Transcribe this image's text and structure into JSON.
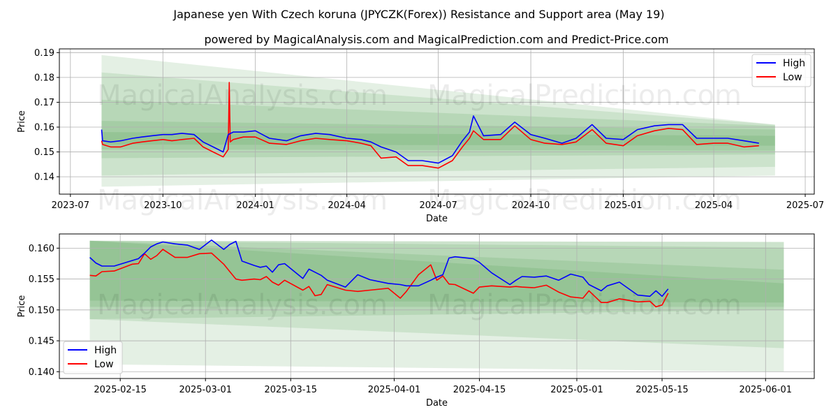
{
  "title": "Japanese yen With Czech koruna (JPYCZK(Forex)) Resistance and Support area (May 19)",
  "subtitle": "powered by MagicalAnalysis.com and MagicalPrediction.com and Predict-Price.com",
  "watermarks": [
    "MagicalAnalysis.com",
    "MagicalPrediction.com"
  ],
  "colors": {
    "high": "#0000ff",
    "low": "#ff0000",
    "band": "#2e8b2e",
    "grid": "#b0b0b0"
  },
  "chart_data": [
    {
      "type": "line",
      "xlabel": "Date",
      "ylabel": "Price",
      "x_tick_labels": [
        "2023-07",
        "2023-10",
        "2024-01",
        "2024-04",
        "2024-07",
        "2024-10",
        "2025-01",
        "2025-04",
        "2025-07"
      ],
      "y_tick_labels": [
        "0.14",
        "0.15",
        "0.16",
        "0.17",
        "0.18",
        "0.19"
      ],
      "xlim": [
        "2023-06-20",
        "2025-07-10"
      ],
      "ylim": [
        0.133,
        0.1915
      ],
      "grid": true,
      "legend": {
        "placement": "top-right",
        "entries": [
          "High",
          "Low"
        ]
      },
      "bands": [
        {
          "x": [
            "2023-08-01",
            "2025-06-01"
          ],
          "upper": [
            0.189,
            0.161
          ],
          "lower": [
            0.136,
            0.1405
          ]
        },
        {
          "x": [
            "2023-08-01",
            "2025-06-01"
          ],
          "upper": [
            0.182,
            0.161
          ],
          "lower": [
            0.1405,
            0.144
          ]
        },
        {
          "x": [
            "2023-08-01",
            "2025-06-01"
          ],
          "upper": [
            0.171,
            0.1605
          ],
          "lower": [
            0.1475,
            0.149
          ]
        },
        {
          "x": [
            "2023-08-01",
            "2025-06-01"
          ],
          "upper": [
            0.1625,
            0.159
          ],
          "lower": [
            0.151,
            0.1505
          ]
        },
        {
          "x": [
            "2023-08-01",
            "2025-06-01"
          ],
          "upper": [
            0.158,
            0.1565
          ],
          "lower": [
            0.153,
            0.1525
          ]
        }
      ],
      "series": [
        {
          "name": "High",
          "x": [
            "2023-08-01",
            "2023-08-02",
            "2023-08-10",
            "2023-08-20",
            "2023-09-01",
            "2023-09-10",
            "2023-09-20",
            "2023-10-01",
            "2023-10-10",
            "2023-10-20",
            "2023-11-01",
            "2023-11-10",
            "2023-11-20",
            "2023-11-30",
            "2023-12-05",
            "2023-12-10",
            "2023-12-20",
            "2024-01-01",
            "2024-01-15",
            "2024-02-01",
            "2024-02-15",
            "2024-03-01",
            "2024-03-15",
            "2024-04-01",
            "2024-04-15",
            "2024-04-25",
            "2024-05-05",
            "2024-05-20",
            "2024-06-01",
            "2024-06-15",
            "2024-07-01",
            "2024-07-15",
            "2024-07-25",
            "2024-08-01",
            "2024-08-05",
            "2024-08-15",
            "2024-09-01",
            "2024-09-15",
            "2024-10-01",
            "2024-10-15",
            "2024-11-01",
            "2024-11-15",
            "2024-12-01",
            "2024-12-15",
            "2025-01-01",
            "2025-01-15",
            "2025-02-01",
            "2025-02-15",
            "2025-03-01",
            "2025-03-15",
            "2025-04-01",
            "2025-04-15",
            "2025-05-01",
            "2025-05-16"
          ],
          "values": [
            0.159,
            0.1545,
            0.154,
            0.1545,
            0.1555,
            0.156,
            0.1565,
            0.157,
            0.157,
            0.1575,
            0.157,
            0.154,
            0.152,
            0.15,
            0.157,
            0.158,
            0.158,
            0.1585,
            0.1555,
            0.1545,
            0.1565,
            0.1575,
            0.157,
            0.1555,
            0.155,
            0.154,
            0.152,
            0.15,
            0.1465,
            0.1465,
            0.1455,
            0.1485,
            0.1545,
            0.158,
            0.1645,
            0.1565,
            0.157,
            0.162,
            0.157,
            0.1555,
            0.1535,
            0.1555,
            0.161,
            0.1555,
            0.155,
            0.159,
            0.1605,
            0.161,
            0.161,
            0.1555,
            0.1555,
            0.1555,
            0.1545,
            0.1535
          ]
        },
        {
          "name": "Low",
          "x": [
            "2023-08-01",
            "2023-08-02",
            "2023-08-10",
            "2023-08-20",
            "2023-09-01",
            "2023-09-10",
            "2023-09-20",
            "2023-10-01",
            "2023-10-10",
            "2023-10-20",
            "2023-11-01",
            "2023-11-10",
            "2023-11-20",
            "2023-11-30",
            "2023-12-05",
            "2023-12-06",
            "2023-12-07",
            "2023-12-10",
            "2023-12-20",
            "2024-01-01",
            "2024-01-15",
            "2024-02-01",
            "2024-02-15",
            "2024-03-01",
            "2024-03-15",
            "2024-04-01",
            "2024-04-15",
            "2024-04-25",
            "2024-05-05",
            "2024-05-20",
            "2024-06-01",
            "2024-06-15",
            "2024-07-01",
            "2024-07-15",
            "2024-07-25",
            "2024-08-01",
            "2024-08-05",
            "2024-08-15",
            "2024-09-01",
            "2024-09-15",
            "2024-10-01",
            "2024-10-15",
            "2024-11-01",
            "2024-11-15",
            "2024-12-01",
            "2024-12-15",
            "2025-01-01",
            "2025-01-15",
            "2025-02-01",
            "2025-02-15",
            "2025-03-01",
            "2025-03-15",
            "2025-04-01",
            "2025-04-15",
            "2025-05-01",
            "2025-05-16"
          ],
          "values": [
            0.1545,
            0.153,
            0.152,
            0.152,
            0.1535,
            0.154,
            0.1545,
            0.155,
            0.1545,
            0.155,
            0.1555,
            0.152,
            0.15,
            0.148,
            0.151,
            0.178,
            0.154,
            0.155,
            0.156,
            0.156,
            0.1535,
            0.153,
            0.1545,
            0.1555,
            0.155,
            0.1545,
            0.1535,
            0.1525,
            0.1475,
            0.148,
            0.1445,
            0.1445,
            0.1435,
            0.1465,
            0.152,
            0.1555,
            0.1585,
            0.155,
            0.155,
            0.1605,
            0.155,
            0.1535,
            0.153,
            0.154,
            0.159,
            0.1535,
            0.1525,
            0.1565,
            0.1585,
            0.1595,
            0.159,
            0.153,
            0.1535,
            0.1535,
            0.152,
            0.1525
          ]
        }
      ]
    },
    {
      "type": "line",
      "xlabel": "Date",
      "ylabel": "Price",
      "x_tick_labels": [
        "2025-02-15",
        "2025-03-01",
        "2025-03-15",
        "2025-04-01",
        "2025-04-15",
        "2025-05-01",
        "2025-05-15",
        "2025-06-01"
      ],
      "y_tick_labels": [
        "0.140",
        "0.145",
        "0.150",
        "0.155",
        "0.160"
      ],
      "xlim": [
        "2025-02-05",
        "2025-06-09"
      ],
      "ylim": [
        0.1389,
        0.1623
      ],
      "grid": true,
      "legend": {
        "placement": "bottom-left",
        "entries": [
          "High",
          "Low"
        ]
      },
      "bands": [
        {
          "x": [
            "2025-02-10",
            "2025-06-04"
          ],
          "upper": [
            0.1612,
            0.161
          ],
          "lower": [
            0.1412,
            0.14
          ]
        },
        {
          "x": [
            "2025-02-10",
            "2025-06-04"
          ],
          "upper": [
            0.1612,
            0.161
          ],
          "lower": [
            0.1485,
            0.1438
          ]
        },
        {
          "x": [
            "2025-02-10",
            "2025-06-04"
          ],
          "upper": [
            0.1612,
            0.1601
          ],
          "lower": [
            0.1485,
            0.15
          ]
        },
        {
          "x": [
            "2025-02-10",
            "2025-06-04"
          ],
          "upper": [
            0.1612,
            0.1565
          ],
          "lower": [
            0.1505,
            0.1505
          ]
        },
        {
          "x": [
            "2025-02-10",
            "2025-06-04"
          ],
          "upper": [
            0.1612,
            0.1543
          ],
          "lower": [
            0.1515,
            0.1512
          ]
        }
      ],
      "series": [
        {
          "name": "High",
          "x": [
            "2025-02-10",
            "2025-02-11",
            "2025-02-12",
            "2025-02-14",
            "2025-02-17",
            "2025-02-18",
            "2025-02-19",
            "2025-02-20",
            "2025-02-21",
            "2025-02-22",
            "2025-02-24",
            "2025-02-26",
            "2025-02-28",
            "2025-03-02",
            "2025-03-04",
            "2025-03-05",
            "2025-03-06",
            "2025-03-07",
            "2025-03-09",
            "2025-03-10",
            "2025-03-11",
            "2025-03-12",
            "2025-03-13",
            "2025-03-14",
            "2025-03-17",
            "2025-03-18",
            "2025-03-19",
            "2025-03-20",
            "2025-03-21",
            "2025-03-24",
            "2025-03-26",
            "2025-03-28",
            "2025-03-31",
            "2025-04-02",
            "2025-04-03",
            "2025-04-05",
            "2025-04-07",
            "2025-04-08",
            "2025-04-09",
            "2025-04-10",
            "2025-04-11",
            "2025-04-14",
            "2025-04-15",
            "2025-04-17",
            "2025-04-20",
            "2025-04-21",
            "2025-04-22",
            "2025-04-24",
            "2025-04-26",
            "2025-04-28",
            "2025-04-30",
            "2025-05-02",
            "2025-05-03",
            "2025-05-05",
            "2025-05-06",
            "2025-05-08",
            "2025-05-11",
            "2025-05-13",
            "2025-05-14",
            "2025-05-15",
            "2025-05-16"
          ],
          "values": [
            0.1585,
            0.1576,
            0.1571,
            0.1571,
            0.158,
            0.1583,
            0.1592,
            0.1602,
            0.1607,
            0.161,
            0.1607,
            0.1605,
            0.1598,
            0.1613,
            0.1598,
            0.1606,
            0.1611,
            0.1579,
            0.1572,
            0.1569,
            0.1571,
            0.1561,
            0.1573,
            0.1575,
            0.1551,
            0.1566,
            0.1561,
            0.1556,
            0.1548,
            0.1537,
            0.1557,
            0.1549,
            0.1543,
            0.1541,
            0.1539,
            0.1539,
            0.1548,
            0.1553,
            0.1557,
            0.1584,
            0.1586,
            0.1583,
            0.1577,
            0.156,
            0.1541,
            0.1548,
            0.1554,
            0.1553,
            0.1555,
            0.1548,
            0.1558,
            0.1553,
            0.1541,
            0.1531,
            0.1539,
            0.1545,
            0.1524,
            0.1522,
            0.1531,
            0.1522,
            0.1534
          ]
        },
        {
          "name": "Low",
          "x": [
            "2025-02-10",
            "2025-02-11",
            "2025-02-12",
            "2025-02-14",
            "2025-02-17",
            "2025-02-18",
            "2025-02-19",
            "2025-02-20",
            "2025-02-21",
            "2025-02-22",
            "2025-02-24",
            "2025-02-26",
            "2025-02-28",
            "2025-03-02",
            "2025-03-04",
            "2025-03-05",
            "2025-03-06",
            "2025-03-07",
            "2025-03-09",
            "2025-03-10",
            "2025-03-11",
            "2025-03-12",
            "2025-03-13",
            "2025-03-14",
            "2025-03-17",
            "2025-03-18",
            "2025-03-19",
            "2025-03-20",
            "2025-03-21",
            "2025-03-24",
            "2025-03-26",
            "2025-03-28",
            "2025-03-31",
            "2025-04-02",
            "2025-04-03",
            "2025-04-05",
            "2025-04-07",
            "2025-04-08",
            "2025-04-09",
            "2025-04-10",
            "2025-04-11",
            "2025-04-14",
            "2025-04-15",
            "2025-04-17",
            "2025-04-20",
            "2025-04-21",
            "2025-04-22",
            "2025-04-24",
            "2025-04-26",
            "2025-04-28",
            "2025-04-30",
            "2025-05-02",
            "2025-05-03",
            "2025-05-05",
            "2025-05-06",
            "2025-05-08",
            "2025-05-11",
            "2025-05-13",
            "2025-05-14",
            "2025-05-15",
            "2025-05-16"
          ],
          "values": [
            0.1556,
            0.1555,
            0.1562,
            0.1563,
            0.1574,
            0.1575,
            0.1591,
            0.1582,
            0.1588,
            0.1598,
            0.1585,
            0.1585,
            0.1591,
            0.1592,
            0.1574,
            0.1562,
            0.155,
            0.1548,
            0.155,
            0.1549,
            0.1554,
            0.1545,
            0.154,
            0.1548,
            0.1532,
            0.1538,
            0.1523,
            0.1525,
            0.1541,
            0.1532,
            0.153,
            0.1532,
            0.1535,
            0.1519,
            0.153,
            0.1557,
            0.1573,
            0.1548,
            0.1555,
            0.1542,
            0.1541,
            0.1527,
            0.1537,
            0.1539,
            0.1537,
            0.1538,
            0.1537,
            0.1536,
            0.154,
            0.1529,
            0.1521,
            0.1519,
            0.1531,
            0.1512,
            0.1512,
            0.1518,
            0.1513,
            0.1514,
            0.1505,
            0.1508,
            0.1527
          ]
        }
      ]
    }
  ]
}
